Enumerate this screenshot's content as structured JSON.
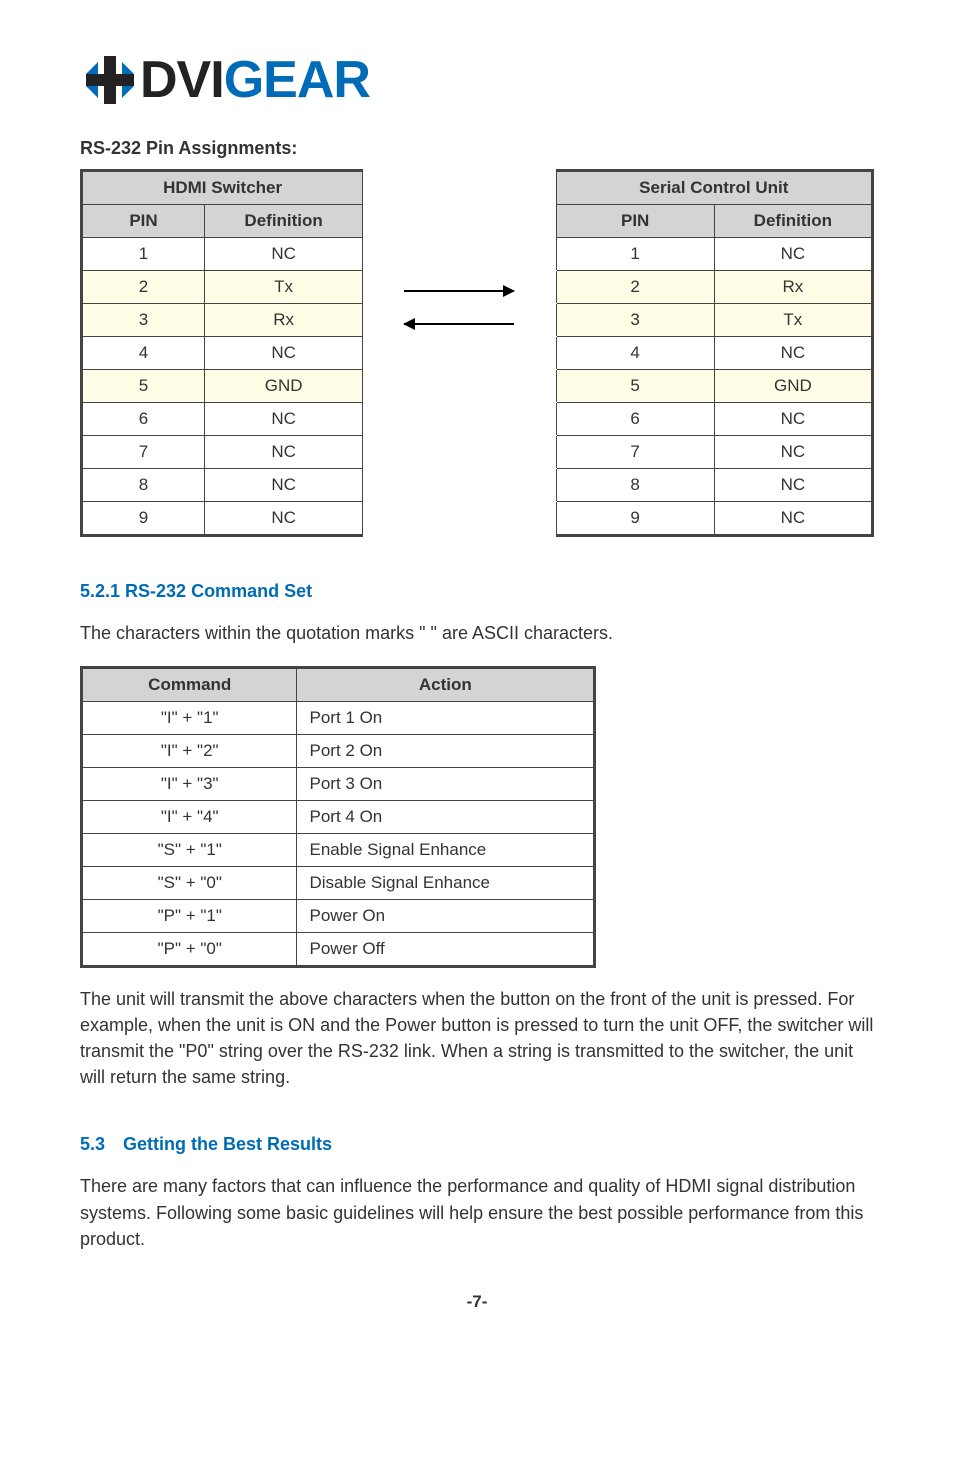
{
  "logo": {
    "icon_color_blue": "#006bb6",
    "icon_color_black": "#222222",
    "text_plain": "DVI",
    "text_blue": "GEAR"
  },
  "pin_section": {
    "label": "RS-232 Pin Assignments:",
    "hdmi_header": "HDMI Switcher",
    "serial_header": "Serial Control Unit",
    "col_pin": "PIN",
    "col_def": "Definition",
    "rows": [
      {
        "pin": "1",
        "hdmi": "NC",
        "serial_pin": "1",
        "serial": "NC",
        "yellow": false,
        "arrow": ""
      },
      {
        "pin": "2",
        "hdmi": "Tx",
        "serial_pin": "2",
        "serial": "Rx",
        "yellow": true,
        "arrow": "right"
      },
      {
        "pin": "3",
        "hdmi": "Rx",
        "serial_pin": "3",
        "serial": "Tx",
        "yellow": true,
        "arrow": "left"
      },
      {
        "pin": "4",
        "hdmi": "NC",
        "serial_pin": "4",
        "serial": "NC",
        "yellow": false,
        "arrow": ""
      },
      {
        "pin": "5",
        "hdmi": "GND",
        "serial_pin": "5",
        "serial": "GND",
        "yellow": true,
        "arrow": ""
      },
      {
        "pin": "6",
        "hdmi": "NC",
        "serial_pin": "6",
        "serial": "NC",
        "yellow": false,
        "arrow": ""
      },
      {
        "pin": "7",
        "hdmi": "NC",
        "serial_pin": "7",
        "serial": "NC",
        "yellow": false,
        "arrow": ""
      },
      {
        "pin": "8",
        "hdmi": "NC",
        "serial_pin": "8",
        "serial": "NC",
        "yellow": false,
        "arrow": ""
      },
      {
        "pin": "9",
        "hdmi": "NC",
        "serial_pin": "9",
        "serial": "NC",
        "yellow": false,
        "arrow": ""
      }
    ]
  },
  "cmd_section": {
    "heading": "5.2.1  RS-232 Command Set",
    "intro": "The characters within the quotation marks \"   \" are ASCII characters.",
    "col_cmd": "Command",
    "col_action": "Action",
    "rows": [
      {
        "cmd": "\"I\" + \"1\"",
        "action": "Port 1 On"
      },
      {
        "cmd": "\"I\" + \"2\"",
        "action": "Port 2 On"
      },
      {
        "cmd": "\"I\" + \"3\"",
        "action": "Port 3 On"
      },
      {
        "cmd": "\"I\" + \"4\"",
        "action": "Port 4 On"
      },
      {
        "cmd": "\"S\" + \"1\"",
        "action": "Enable Signal Enhance"
      },
      {
        "cmd": "\"S\" + \"0\"",
        "action": "Disable Signal Enhance"
      },
      {
        "cmd": "\"P\" + \"1\"",
        "action": "Power On"
      },
      {
        "cmd": "\"P\" + \"0\"",
        "action": "Power Off"
      }
    ],
    "post_para": "The unit will transmit the above characters when the button on the front of the unit is pressed.  For example, when the unit is ON and the Power button is pressed to turn the unit OFF, the switcher will transmit the \"P0\" string over the RS-232 link.  When a string is transmitted to the switcher, the unit will return the same string."
  },
  "results_section": {
    "heading": "5.3 Getting the Best Results",
    "para": "There are many factors that can influence the performance and quality of HDMI signal distribution systems.  Following some basic guidelines will help ensure the best possible performance from this product."
  },
  "page_number": "-7-"
}
